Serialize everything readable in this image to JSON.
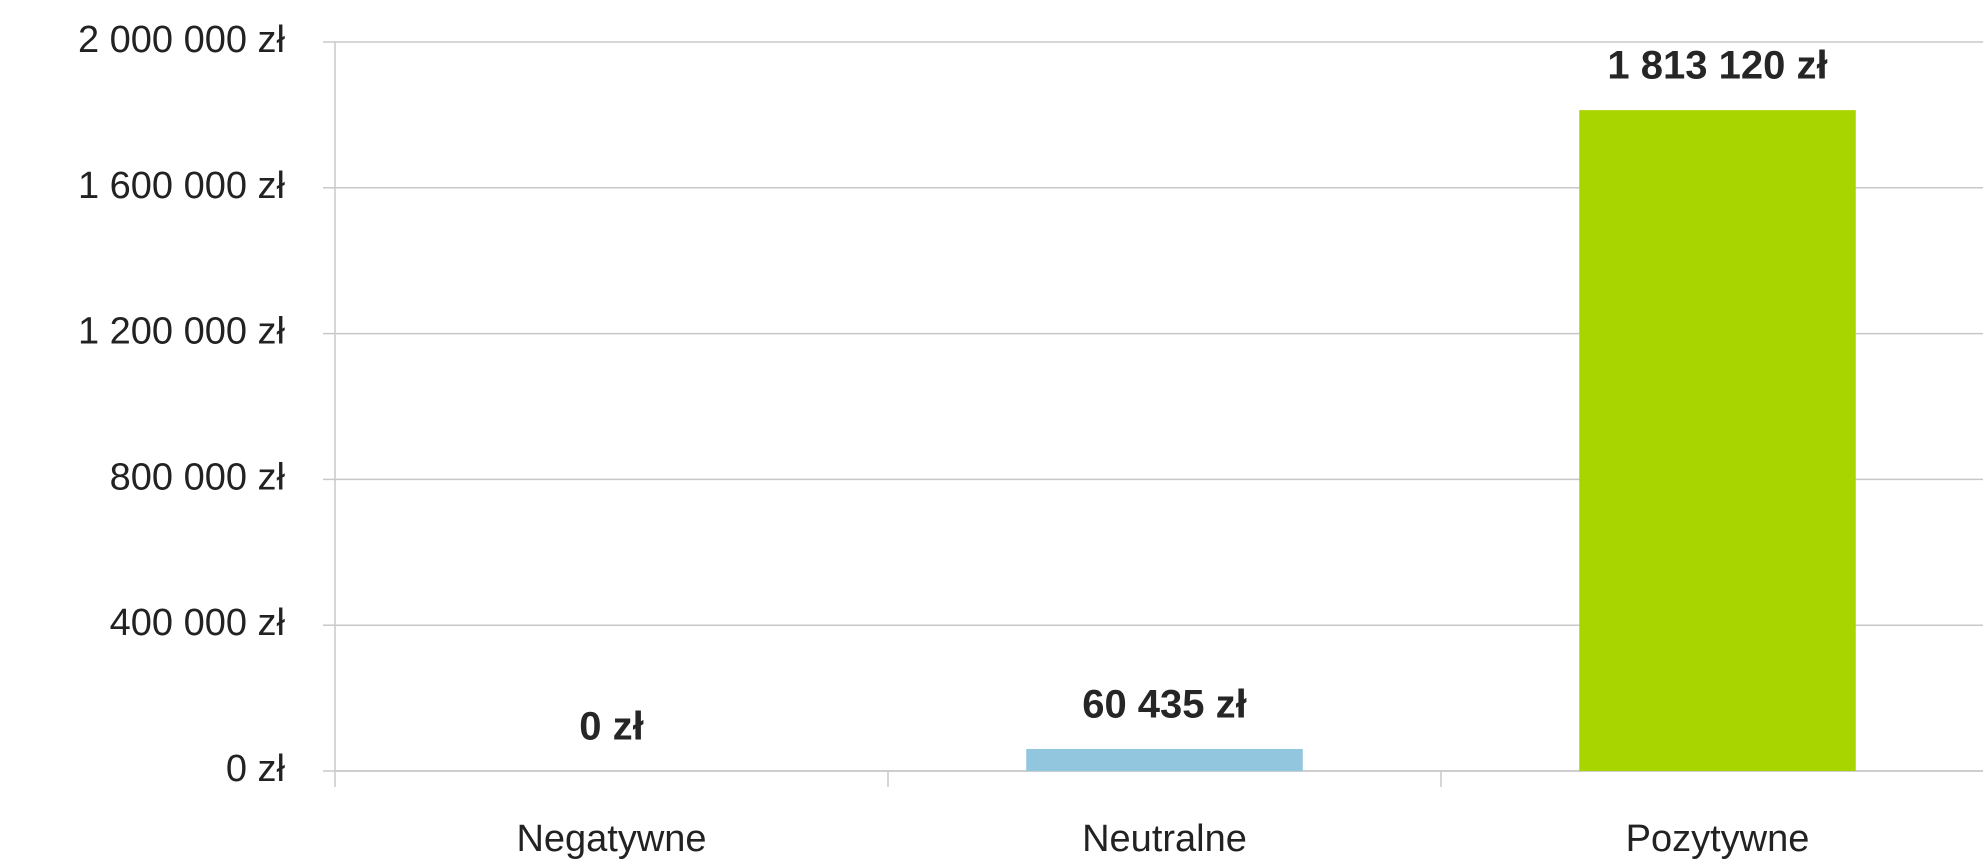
{
  "chart_data": {
    "type": "bar",
    "categories": [
      "Negatywne",
      "Neutralne",
      "Pozytywne"
    ],
    "values": [
      0,
      60435,
      1813120
    ],
    "value_labels": [
      "0 zł",
      "60 435 zł",
      "1 813 120 zł"
    ],
    "colors": [
      "#c0504d",
      "#92c5de",
      "#a8d400"
    ],
    "ylim": [
      0,
      2000000
    ],
    "yticks": [
      {
        "value": 0,
        "label": "0 zł"
      },
      {
        "value": 400000,
        "label": "400 000 zł"
      },
      {
        "value": 800000,
        "label": "800 000 zł"
      },
      {
        "value": 1200000,
        "label": "1 200 000 zł"
      },
      {
        "value": 1600000,
        "label": "1 600 000 zł"
      },
      {
        "value": 2000000,
        "label": "2 000 000 zł"
      }
    ],
    "grid": true
  }
}
